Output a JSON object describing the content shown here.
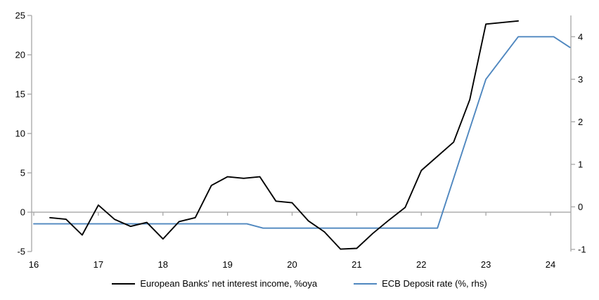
{
  "colors": {
    "nii_line": "#000000",
    "deposit_line": "#4f87bf",
    "axis_gray": "#a6a6a6",
    "zero_line_gray": "#9e9e9e",
    "label_text": "#000000",
    "background": "#ffffff"
  },
  "chart_data": {
    "type": "line",
    "title": "",
    "legend_position": "bottom-center",
    "grid": "zero-line-only",
    "x_axis": {
      "range": [
        16,
        24.316
      ],
      "ticks": [
        16,
        17,
        18,
        19,
        20,
        21,
        22,
        23,
        24
      ],
      "labels": [
        "16",
        "17",
        "18",
        "19",
        "20",
        "21",
        "22",
        "23",
        "24"
      ]
    },
    "left_axis": {
      "range": [
        -5,
        25
      ],
      "ticks": [
        -5,
        0,
        5,
        10,
        15,
        20,
        25
      ],
      "labels": [
        "-5",
        "0",
        "5",
        "10",
        "15",
        "20",
        "25"
      ]
    },
    "right_axis": {
      "range": [
        -1.05,
        4.5
      ],
      "ticks": [
        -1,
        0,
        1,
        2,
        3,
        4
      ],
      "labels": [
        "-1",
        "0",
        "1",
        "2",
        "3",
        "4"
      ]
    },
    "series": [
      {
        "name": "European Banks' net interest income, %oya",
        "axis": "left",
        "color_key": "nii_line",
        "x": [
          16.25,
          16.5,
          16.75,
          17.0,
          17.25,
          17.5,
          17.75,
          18.0,
          18.25,
          18.5,
          18.75,
          19.0,
          19.25,
          19.5,
          19.75,
          20.0,
          20.25,
          20.5,
          20.75,
          21.0,
          21.25,
          21.5,
          21.75,
          22.0,
          22.25,
          22.5,
          22.75,
          23.0,
          23.25,
          23.5
        ],
        "values": [
          -0.7,
          -0.9,
          -2.9,
          0.9,
          -0.9,
          -1.8,
          -1.3,
          -3.4,
          -1.2,
          -0.7,
          3.4,
          4.5,
          4.3,
          4.5,
          1.4,
          1.2,
          -1.1,
          -2.5,
          -4.7,
          -4.6,
          -2.7,
          -1.0,
          0.6,
          5.3,
          7.1,
          8.9,
          14.3,
          23.9,
          24.1,
          24.3
        ]
      },
      {
        "name": "ECB Deposit rate (%, rhs)",
        "axis": "right",
        "color_key": "deposit_line",
        "x": [
          16.0,
          19.3,
          19.55,
          22.25,
          23.0,
          23.5,
          24.05,
          24.3
        ],
        "values": [
          -0.4,
          -0.4,
          -0.5,
          -0.5,
          3.0,
          4.0,
          4.0,
          3.75
        ]
      }
    ]
  }
}
